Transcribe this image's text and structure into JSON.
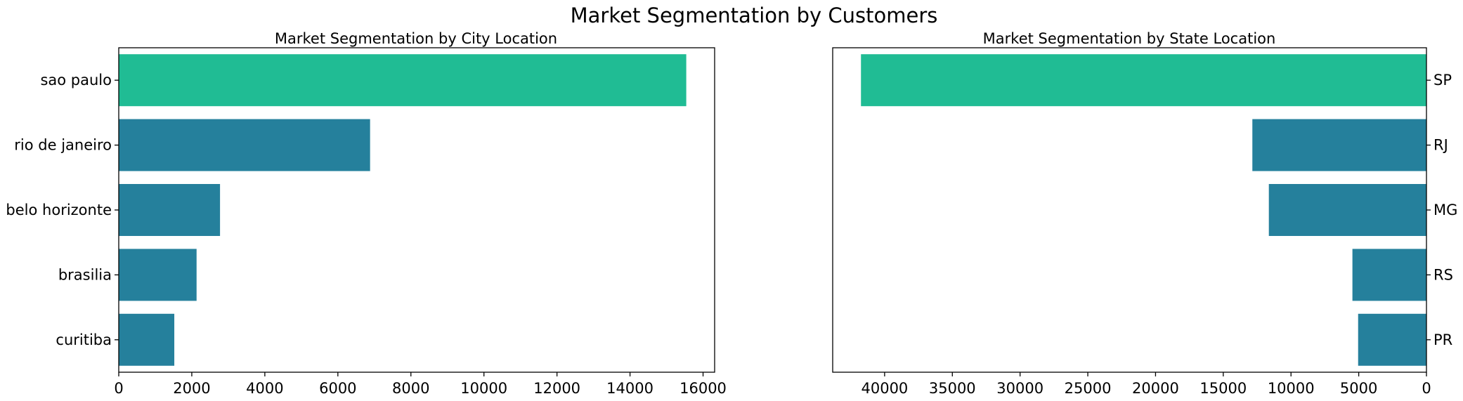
{
  "figure_title": "Market Segmentation by Customers",
  "colors": {
    "highlight": "#20bc94",
    "default": "#25809c"
  },
  "chart_data": [
    {
      "type": "bar",
      "orientation": "horizontal",
      "title": "Market Segmentation by City Location",
      "categories": [
        "sao paulo",
        "rio de janeiro",
        "belo horizonte",
        "brasilia",
        "curitiba"
      ],
      "values": [
        15540,
        6882,
        2773,
        2131,
        1521
      ],
      "xlim": [
        0,
        16317
      ],
      "xticks": [
        0,
        2000,
        4000,
        6000,
        8000,
        10000,
        12000,
        14000,
        16000
      ],
      "x_inverted": false,
      "yaxis_side": "left",
      "highlight_index": 0
    },
    {
      "type": "bar",
      "orientation": "horizontal",
      "title": "Market Segmentation by State Location",
      "categories": [
        "SP",
        "RJ",
        "MG",
        "RS",
        "PR"
      ],
      "values": [
        41746,
        12852,
        11635,
        5466,
        5045
      ],
      "xlim": [
        0,
        43833
      ],
      "xticks": [
        0,
        5000,
        10000,
        15000,
        20000,
        25000,
        30000,
        35000,
        40000
      ],
      "x_inverted": true,
      "yaxis_side": "right",
      "highlight_index": 0
    }
  ]
}
